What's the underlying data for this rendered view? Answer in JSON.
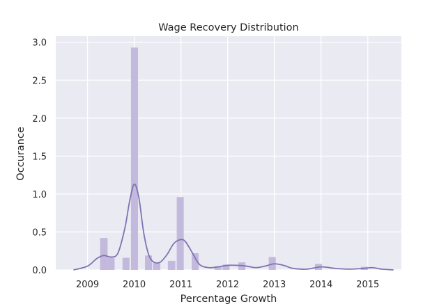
{
  "chart_data": {
    "type": "bar",
    "title": "Wage Recovery Distribution",
    "xlabel": "Percentage Growth",
    "ylabel": "Occurance",
    "xlim": [
      2008.32,
      2015.72
    ],
    "ylim": [
      0,
      3.08
    ],
    "x_ticks": [
      2009,
      2010,
      2011,
      2012,
      2013,
      2014,
      2015
    ],
    "x_tick_labels": [
      "2009",
      "2010",
      "2011",
      "2012",
      "2013",
      "2014",
      "2015"
    ],
    "y_ticks": [
      0,
      0.5,
      1.0,
      1.5,
      2.0,
      2.5,
      3.0
    ],
    "y_tick_labels": [
      "0.0",
      "0.5",
      "1.0",
      "1.5",
      "2.0",
      "2.5",
      "3.0"
    ],
    "grid": true,
    "bar_color": "#c2b9dc",
    "kde_color": "#8172b2",
    "background_color": "#eaeaf2",
    "histogram": {
      "bins": [
        {
          "x0": 2009.27,
          "x1": 2009.43,
          "density": 0.42
        },
        {
          "x0": 2009.43,
          "x1": 2009.58,
          "density": 0.16
        },
        {
          "x0": 2009.75,
          "x1": 2009.9,
          "density": 0.16
        },
        {
          "x0": 2009.93,
          "x1": 2010.08,
          "density": 2.93
        },
        {
          "x0": 2010.23,
          "x1": 2010.38,
          "density": 0.19
        },
        {
          "x0": 2010.4,
          "x1": 2010.56,
          "density": 0.09
        },
        {
          "x0": 2010.72,
          "x1": 2010.88,
          "density": 0.12
        },
        {
          "x0": 2010.91,
          "x1": 2011.06,
          "density": 0.96
        },
        {
          "x0": 2011.23,
          "x1": 2011.38,
          "density": 0.22
        },
        {
          "x0": 2011.72,
          "x1": 2011.87,
          "density": 0.05
        },
        {
          "x0": 2011.89,
          "x1": 2012.04,
          "density": 0.07
        },
        {
          "x0": 2012.23,
          "x1": 2012.38,
          "density": 0.1
        },
        {
          "x0": 2012.88,
          "x1": 2013.03,
          "density": 0.17
        },
        {
          "x0": 2013.87,
          "x1": 2014.02,
          "density": 0.08
        },
        {
          "x0": 2014.85,
          "x1": 2015.0,
          "density": 0.04
        }
      ]
    },
    "kde": {
      "x": [
        2008.7,
        2009.0,
        2009.2,
        2009.35,
        2009.5,
        2009.65,
        2009.8,
        2009.9,
        2010.0,
        2010.1,
        2010.2,
        2010.3,
        2010.4,
        2010.55,
        2010.7,
        2010.85,
        2011.0,
        2011.1,
        2011.25,
        2011.4,
        2011.6,
        2011.8,
        2012.0,
        2012.2,
        2012.4,
        2012.6,
        2012.8,
        2013.0,
        2013.2,
        2013.4,
        2013.7,
        2014.0,
        2014.3,
        2014.6,
        2014.9,
        2015.1,
        2015.3,
        2015.55
      ],
      "y": [
        0.0,
        0.05,
        0.15,
        0.19,
        0.17,
        0.22,
        0.55,
        0.9,
        1.13,
        0.95,
        0.5,
        0.22,
        0.11,
        0.1,
        0.2,
        0.35,
        0.4,
        0.37,
        0.22,
        0.07,
        0.03,
        0.04,
        0.06,
        0.06,
        0.05,
        0.03,
        0.05,
        0.08,
        0.06,
        0.02,
        0.01,
        0.04,
        0.02,
        0.01,
        0.02,
        0.03,
        0.01,
        0.0
      ]
    }
  }
}
